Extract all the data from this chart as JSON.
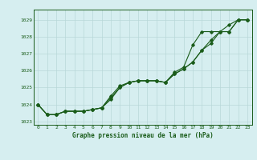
{
  "x": [
    0,
    1,
    2,
    3,
    4,
    5,
    6,
    7,
    8,
    9,
    10,
    11,
    12,
    13,
    14,
    15,
    16,
    17,
    18,
    19,
    20,
    21,
    22,
    23
  ],
  "line1": [
    1024.0,
    1023.4,
    1023.4,
    1023.6,
    1023.6,
    1023.6,
    1023.7,
    1023.8,
    1024.4,
    1025.0,
    1025.3,
    1025.4,
    1025.4,
    1025.4,
    1025.3,
    1025.8,
    1026.1,
    1026.5,
    1027.2,
    1027.8,
    1028.3,
    1028.3,
    1029.0,
    1029.0
  ],
  "line2": [
    1024.0,
    1023.4,
    1023.4,
    1023.6,
    1023.6,
    1023.6,
    1023.7,
    1023.8,
    1024.5,
    1025.1,
    1025.3,
    1025.4,
    1025.4,
    1025.4,
    1025.3,
    1025.9,
    1026.2,
    1027.5,
    1028.3,
    1028.3,
    1028.3,
    1028.3,
    1029.0,
    1029.0
  ],
  "line3": [
    1024.0,
    1023.4,
    1023.4,
    1023.6,
    1023.6,
    1023.6,
    1023.7,
    1023.8,
    1024.3,
    1025.0,
    1025.3,
    1025.4,
    1025.4,
    1025.4,
    1025.3,
    1025.8,
    1026.1,
    1026.5,
    1027.2,
    1027.6,
    1028.3,
    1028.7,
    1029.0,
    1029.0
  ],
  "bg_color": "#d6eef0",
  "line_color": "#1a5c1a",
  "grid_color": "#b8d8d8",
  "title": "Graphe pression niveau de la mer (hPa)",
  "ylim": [
    1022.8,
    1029.6
  ],
  "yticks": [
    1023,
    1024,
    1025,
    1026,
    1027,
    1028,
    1029
  ],
  "xlim": [
    -0.5,
    23.5
  ],
  "xticks": [
    0,
    1,
    2,
    3,
    4,
    5,
    6,
    7,
    8,
    9,
    10,
    11,
    12,
    13,
    14,
    15,
    16,
    17,
    18,
    19,
    20,
    21,
    22,
    23
  ]
}
